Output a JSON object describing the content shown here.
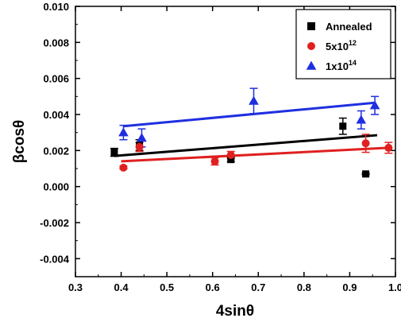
{
  "chart_data": {
    "type": "scatter",
    "xlabel": "4sinθ",
    "ylabel": "βcosθ",
    "xlim": [
      0.3,
      1.0
    ],
    "ylim": [
      -0.005,
      0.01
    ],
    "xticks": [
      "0.3",
      "0.4",
      "0.5",
      "0.6",
      "0.7",
      "0.8",
      "0.9",
      "1.0"
    ],
    "yticks": [
      "-0.004",
      "-0.002",
      "0.000",
      "0.002",
      "0.004",
      "0.006",
      "0.008",
      "0.010"
    ],
    "legend_position": "top-right",
    "series": [
      {
        "name": "Annealed",
        "name_base": "Annealed",
        "name_sup": "",
        "marker": "square",
        "color": "#000000",
        "points": [
          {
            "x": 0.385,
            "y": 0.0019,
            "err": 0.00022
          },
          {
            "x": 0.44,
            "y": 0.0023,
            "err": 0.0003
          },
          {
            "x": 0.64,
            "y": 0.0015,
            "err": 0.00012
          },
          {
            "x": 0.885,
            "y": 0.00335,
            "err": 0.00045
          },
          {
            "x": 0.935,
            "y": 0.0007,
            "err": 4e-05
          }
        ],
        "fit": {
          "x": [
            0.385,
            0.96
          ],
          "y": [
            0.0017,
            0.00285
          ]
        }
      },
      {
        "name": "5x10^12",
        "name_base": "5x10",
        "name_sup": "12",
        "marker": "circle",
        "color": "#e02020",
        "points": [
          {
            "x": 0.405,
            "y": 0.00105,
            "err": 8e-05
          },
          {
            "x": 0.44,
            "y": 0.0022,
            "err": 0.00025
          },
          {
            "x": 0.605,
            "y": 0.0014,
            "err": 0.0002
          },
          {
            "x": 0.64,
            "y": 0.00175,
            "err": 0.0002
          },
          {
            "x": 0.935,
            "y": 0.0024,
            "err": 0.0005
          },
          {
            "x": 0.985,
            "y": 0.00215,
            "err": 0.0003
          }
        ],
        "fit": {
          "x": [
            0.4,
            0.985
          ],
          "y": [
            0.0014,
            0.00215
          ]
        }
      },
      {
        "name": "1x10^14",
        "name_base": "1x10",
        "name_sup": "14",
        "marker": "triangle",
        "color": "#1f2fe0",
        "points": [
          {
            "x": 0.405,
            "y": 0.003,
            "err": 0.0004
          },
          {
            "x": 0.445,
            "y": 0.0027,
            "err": 0.0005
          },
          {
            "x": 0.69,
            "y": 0.00475,
            "err": 0.0007
          },
          {
            "x": 0.925,
            "y": 0.0037,
            "err": 0.0005
          },
          {
            "x": 0.955,
            "y": 0.0045,
            "err": 0.0005
          }
        ],
        "fit": {
          "x": [
            0.405,
            0.955
          ],
          "y": [
            0.00335,
            0.00465
          ]
        }
      }
    ]
  }
}
